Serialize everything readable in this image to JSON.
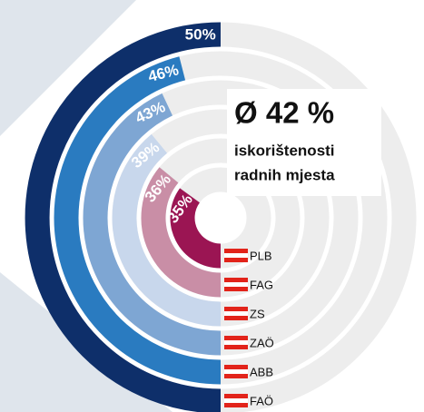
{
  "chart_data": {
    "type": "radial_bar",
    "categories": [
      "PLB",
      "FAG",
      "ZS",
      "ZAÖ",
      "ABB",
      "FAÖ"
    ],
    "values": [
      35,
      36,
      39,
      43,
      46,
      50
    ],
    "value_labels": [
      "35%",
      "36%",
      "39%",
      "43%",
      "46%",
      "50%"
    ],
    "colors": [
      "#9b1553",
      "#c98ea6",
      "#c8d7ec",
      "#7ea6d3",
      "#2a7bc0",
      "#0e2f6a"
    ],
    "annotations": [
      "Ø 42 %",
      "iskorištenosti",
      "radnih mjesta"
    ]
  }
}
